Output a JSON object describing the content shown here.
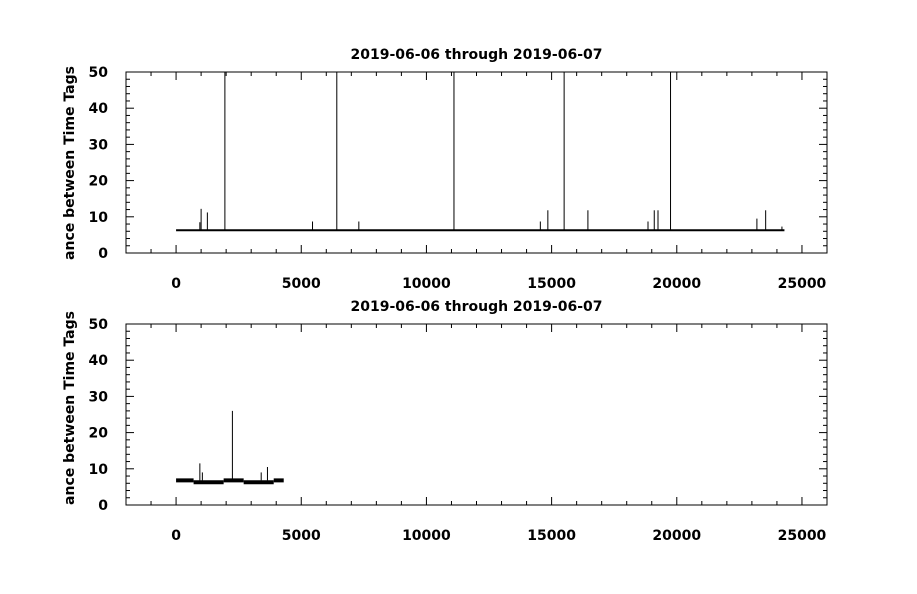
{
  "chart_data": [
    {
      "type": "line",
      "title": "2019-06-06 through 2019-06-07",
      "ylabel": "ance between Time Tags",
      "xlabel": "",
      "xlim": [
        -2000,
        26000
      ],
      "ylim": [
        0,
        50
      ],
      "xticks": [
        0,
        5000,
        10000,
        15000,
        20000,
        25000
      ],
      "yticks": [
        0,
        10,
        20,
        30,
        40,
        50
      ],
      "grid": false,
      "baseline": {
        "x_start": 0,
        "x_end": 24300,
        "y": 6.3
      },
      "spikes": [
        {
          "x": 1000,
          "y": 12.2
        },
        {
          "x": 1250,
          "y": 11.2
        },
        {
          "x": 950,
          "y": 8.5
        },
        {
          "x": 1950,
          "y": 50
        },
        {
          "x": 5450,
          "y": 8.7
        },
        {
          "x": 6420,
          "y": 50
        },
        {
          "x": 7300,
          "y": 8.7
        },
        {
          "x": 11100,
          "y": 50
        },
        {
          "x": 14550,
          "y": 8.7
        },
        {
          "x": 14850,
          "y": 11.8
        },
        {
          "x": 15500,
          "y": 50
        },
        {
          "x": 16450,
          "y": 11.8
        },
        {
          "x": 18850,
          "y": 8.7
        },
        {
          "x": 19100,
          "y": 11.8
        },
        {
          "x": 19250,
          "y": 11.8
        },
        {
          "x": 19750,
          "y": 50
        },
        {
          "x": 23200,
          "y": 9.5
        },
        {
          "x": 23550,
          "y": 11.8
        },
        {
          "x": 24200,
          "y": 7.3
        }
      ]
    },
    {
      "type": "line",
      "title": "2019-06-06 through 2019-06-07",
      "ylabel": "ance between Time Tags",
      "xlabel": "",
      "xlim": [
        -2000,
        26000
      ],
      "ylim": [
        0,
        50
      ],
      "xticks": [
        0,
        5000,
        10000,
        15000,
        20000,
        25000
      ],
      "yticks": [
        0,
        10,
        20,
        30,
        40,
        50
      ],
      "grid": false,
      "segments": [
        {
          "x_start": 0,
          "x_end": 700,
          "y": 6.8
        },
        {
          "x_start": 700,
          "x_end": 1900,
          "y": 6.3
        },
        {
          "x_start": 1900,
          "x_end": 2700,
          "y": 6.8
        },
        {
          "x_start": 2700,
          "x_end": 3900,
          "y": 6.3
        },
        {
          "x_start": 3900,
          "x_end": 4300,
          "y": 6.8
        }
      ],
      "spikes": [
        {
          "x": 950,
          "y": 11.5
        },
        {
          "x": 1050,
          "y": 9.0
        },
        {
          "x": 2250,
          "y": 26
        },
        {
          "x": 3400,
          "y": 9.0
        },
        {
          "x": 3650,
          "y": 10.5
        }
      ]
    }
  ]
}
